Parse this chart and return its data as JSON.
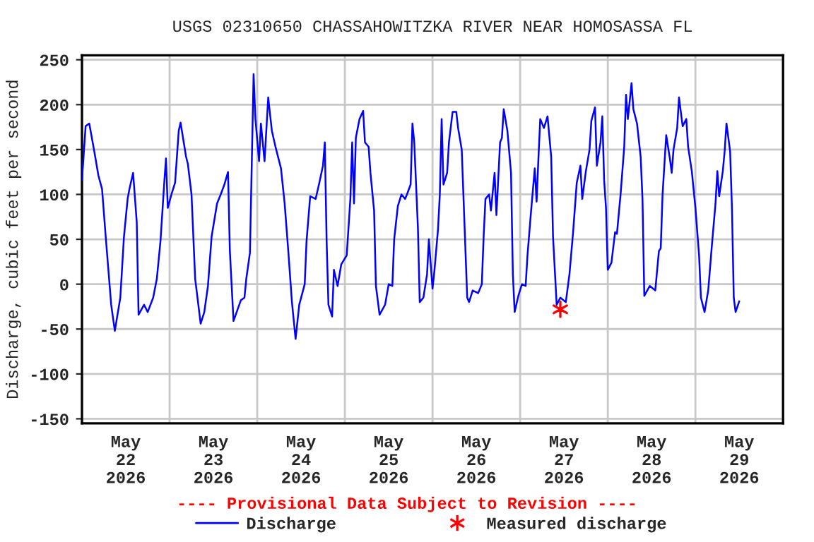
{
  "chart_data": {
    "type": "line",
    "title": "USGS 02310650 CHASSAHOWITZKA RIVER NEAR HOMOSASSA FL",
    "ylabel": "Discharge, cubic feet per second",
    "annotations": [
      "---- Provisional Data Subject to Revision ----"
    ],
    "xlim": [
      "2026-05-22",
      "2026-05-30"
    ],
    "xticks": [
      {
        "value": "2026-05-22",
        "label": null
      },
      {
        "value": "2026-05-22T12:00",
        "label": "May\n22\n2026"
      },
      {
        "value": "2026-05-23",
        "label": null
      },
      {
        "value": "2026-05-23T12:00",
        "label": "May\n23\n2026"
      },
      {
        "value": "2026-05-24",
        "label": null
      },
      {
        "value": "2026-05-24T12:00",
        "label": "May\n24\n2026"
      },
      {
        "value": "2026-05-25",
        "label": null
      },
      {
        "value": "2026-05-25T12:00",
        "label": "May\n25\n2026"
      },
      {
        "value": "2026-05-26",
        "label": null
      },
      {
        "value": "2026-05-26T12:00",
        "label": "May\n26\n2026"
      },
      {
        "value": "2026-05-27",
        "label": null
      },
      {
        "value": "2026-05-27T12:00",
        "label": "May\n27\n2026"
      },
      {
        "value": "2026-05-28",
        "label": null
      },
      {
        "value": "2026-05-28T12:00",
        "label": "May\n28\n2026"
      },
      {
        "value": "2026-05-29",
        "label": null
      },
      {
        "value": "2026-05-29T12:00",
        "label": "May\n29\n2026"
      },
      {
        "value": "2026-05-30",
        "label": null
      }
    ],
    "ylim": [
      -155,
      255
    ],
    "yticks": [
      -150,
      -100,
      -50,
      0,
      50,
      100,
      150,
      200,
      250
    ],
    "grid": true,
    "legend": "bottom",
    "series": [
      {
        "name": "Discharge",
        "color": "#0000ff",
        "marker": "none",
        "line_style": "solid",
        "x": [
          "2026-05-22T00:00",
          "2026-05-22T01:00",
          "2026-05-22T02:00",
          "2026-05-22T03:30",
          "2026-05-22T04:30",
          "2026-05-22T05:30",
          "2026-05-22T06:30",
          "2026-05-22T08:00",
          "2026-05-22T09:00",
          "2026-05-22T10:30",
          "2026-05-22T11:30",
          "2026-05-22T12:30",
          "2026-05-22T13:00",
          "2026-05-22T14:00",
          "2026-05-22T15:00",
          "2026-05-22T15:30",
          "2026-05-22T17:00",
          "2026-05-22T18:00",
          "2026-05-22T19:30",
          "2026-05-22T20:30",
          "2026-05-22T21:30",
          "2026-05-22T22:30",
          "2026-05-22T23:00",
          "2026-05-22T23:30",
          "2026-05-23T00:30",
          "2026-05-23T01:30",
          "2026-05-23T02:30",
          "2026-05-23T03:00",
          "2026-05-23T04:30",
          "2026-05-23T05:00",
          "2026-05-23T06:00",
          "2026-05-23T07:00",
          "2026-05-23T08:30",
          "2026-05-23T09:30",
          "2026-05-23T10:30",
          "2026-05-23T11:30",
          "2026-05-23T13:00",
          "2026-05-23T14:00",
          "2026-05-23T15:00",
          "2026-05-23T16:00",
          "2026-05-23T16:30",
          "2026-05-23T17:30",
          "2026-05-23T19:30",
          "2026-05-23T20:30",
          "2026-05-23T21:00",
          "2026-05-23T22:00",
          "2026-05-23T22:30",
          "2026-05-23T23:00",
          "2026-05-23T23:30",
          "2026-05-24T00:30",
          "2026-05-24T01:00",
          "2026-05-24T02:00",
          "2026-05-24T03:00",
          "2026-05-24T04:00",
          "2026-05-24T05:00",
          "2026-05-24T06:30",
          "2026-05-24T07:30",
          "2026-05-24T08:30",
          "2026-05-24T09:30",
          "2026-05-24T10:30",
          "2026-05-24T11:30",
          "2026-05-24T13:00",
          "2026-05-24T13:30",
          "2026-05-24T14:30",
          "2026-05-24T16:00",
          "2026-05-24T17:00",
          "2026-05-24T18:00",
          "2026-05-24T18:30",
          "2026-05-24T19:00",
          "2026-05-24T19:30",
          "2026-05-24T20:30",
          "2026-05-24T21:00",
          "2026-05-24T22:00",
          "2026-05-24T23:00",
          "2026-05-25T00:30",
          "2026-05-25T01:30",
          "2026-05-25T02:00",
          "2026-05-25T02:30",
          "2026-05-25T03:00",
          "2026-05-25T04:00",
          "2026-05-25T05:00",
          "2026-05-25T05:30",
          "2026-05-25T06:30",
          "2026-05-25T07:00",
          "2026-05-25T08:00",
          "2026-05-25T08:30",
          "2026-05-25T09:30",
          "2026-05-25T11:00",
          "2026-05-25T12:00",
          "2026-05-25T13:00",
          "2026-05-25T13:30",
          "2026-05-25T14:30",
          "2026-05-25T15:30",
          "2026-05-25T16:30",
          "2026-05-25T17:00",
          "2026-05-25T18:00",
          "2026-05-25T18:30",
          "2026-05-25T19:00",
          "2026-05-25T20:00",
          "2026-05-25T20:30",
          "2026-05-25T21:30",
          "2026-05-25T22:30",
          "2026-05-25T23:00",
          "2026-05-26T00:00",
          "2026-05-26T00:30",
          "2026-05-26T01:30",
          "2026-05-26T02:00",
          "2026-05-26T02:30",
          "2026-05-26T03:00",
          "2026-05-26T04:00",
          "2026-05-26T04:30",
          "2026-05-26T05:30",
          "2026-05-26T06:30",
          "2026-05-26T07:00",
          "2026-05-26T08:00",
          "2026-05-26T08:30",
          "2026-05-26T09:30",
          "2026-05-26T10:00",
          "2026-05-26T11:00",
          "2026-05-26T12:30",
          "2026-05-26T13:30",
          "2026-05-26T14:00",
          "2026-05-26T14:30",
          "2026-05-26T15:30",
          "2026-05-26T16:00",
          "2026-05-26T17:00",
          "2026-05-26T17:30",
          "2026-05-26T18:30",
          "2026-05-26T19:00",
          "2026-05-26T19:30",
          "2026-05-26T20:30",
          "2026-05-26T21:30",
          "2026-05-26T22:00",
          "2026-05-26T22:30",
          "2026-05-26T23:30",
          "2026-05-27T00:30",
          "2026-05-27T01:30",
          "2026-05-27T02:00",
          "2026-05-27T03:00",
          "2026-05-27T04:00",
          "2026-05-27T04:30",
          "2026-05-27T05:00",
          "2026-05-27T05:30",
          "2026-05-27T06:30",
          "2026-05-27T07:30",
          "2026-05-27T08:30",
          "2026-05-27T09:00",
          "2026-05-27T10:00",
          "2026-05-27T11:00",
          "2026-05-27T12:30",
          "2026-05-27T13:30",
          "2026-05-27T14:30",
          "2026-05-27T15:30",
          "2026-05-27T16:30",
          "2026-05-27T17:00",
          "2026-05-27T18:00",
          "2026-05-27T19:00",
          "2026-05-27T19:30",
          "2026-05-27T20:30",
          "2026-05-27T21:00",
          "2026-05-27T22:00",
          "2026-05-27T22:30",
          "2026-05-27T23:00",
          "2026-05-27T23:30",
          "2026-05-28T00:00",
          "2026-05-28T01:00",
          "2026-05-28T02:00",
          "2026-05-28T02:30",
          "2026-05-28T03:30",
          "2026-05-28T04:30",
          "2026-05-28T05:00",
          "2026-05-28T05:30",
          "2026-05-28T06:30",
          "2026-05-28T07:00",
          "2026-05-28T08:00",
          "2026-05-28T09:00",
          "2026-05-28T09:30",
          "2026-05-28T10:00",
          "2026-05-28T11:30",
          "2026-05-28T13:00",
          "2026-05-28T14:00",
          "2026-05-28T14:30",
          "2026-05-28T15:00",
          "2026-05-28T16:00",
          "2026-05-28T17:00",
          "2026-05-28T17:30",
          "2026-05-28T18:00",
          "2026-05-28T19:00",
          "2026-05-28T19:30",
          "2026-05-28T20:30",
          "2026-05-28T21:30",
          "2026-05-28T22:00",
          "2026-05-28T23:00",
          "2026-05-29T00:00",
          "2026-05-29T01:00",
          "2026-05-29T01:30",
          "2026-05-29T02:30",
          "2026-05-29T03:30",
          "2026-05-29T04:30",
          "2026-05-29T05:30",
          "2026-05-29T06:00",
          "2026-05-29T06:30",
          "2026-05-29T07:30",
          "2026-05-29T08:00",
          "2026-05-29T08:30",
          "2026-05-29T09:30",
          "2026-05-29T10:00",
          "2026-05-29T10:30",
          "2026-05-29T11:00",
          "2026-05-29T12:00"
        ],
        "values": [
          116,
          176,
          179,
          145,
          121,
          106,
          53,
          -23,
          -52,
          -15,
          53,
          95,
          106,
          124,
          69,
          -34,
          -23,
          -31,
          -15,
          6,
          48,
          111,
          140,
          85,
          100,
          113,
          171,
          180,
          142,
          134,
          100,
          6,
          -44,
          -31,
          -2,
          53,
          90,
          100,
          111,
          125,
          37,
          -41,
          -18,
          -15,
          6,
          35,
          134,
          234,
          184,
          137,
          179,
          137,
          208,
          171,
          153,
          129,
          90,
          37,
          -20,
          -61,
          -23,
          0,
          48,
          98,
          95,
          113,
          132,
          158,
          48,
          -23,
          -36,
          16,
          -2,
          22,
          32,
          95,
          158,
          90,
          163,
          184,
          193,
          158,
          153,
          124,
          82,
          -2,
          -34,
          -23,
          0,
          -2,
          50,
          87,
          100,
          95,
          100,
          111,
          179,
          158,
          63,
          -20,
          -15,
          11,
          50,
          -5,
          14,
          61,
          100,
          184,
          111,
          124,
          158,
          192,
          192,
          174,
          150,
          95,
          -15,
          -20,
          -7,
          -10,
          0,
          53,
          95,
          100,
          82,
          124,
          77,
          158,
          163,
          195,
          171,
          124,
          11,
          -31,
          -13,
          0,
          -2,
          32,
          82,
          129,
          92,
          140,
          184,
          174,
          187,
          142,
          53,
          -23,
          -15,
          -20,
          11,
          58,
          113,
          132,
          95,
          126,
          150,
          182,
          197,
          132,
          158,
          187,
          116,
          85,
          16,
          24,
          58,
          56,
          100,
          153,
          211,
          184,
          224,
          195,
          179,
          142,
          95,
          -13,
          -2,
          -7,
          37,
          40,
          100,
          166,
          140,
          124,
          150,
          174,
          208,
          176,
          184,
          153,
          126,
          85,
          32,
          -15,
          -31,
          -7,
          43,
          90,
          126,
          98,
          126,
          148,
          179,
          148,
          85,
          -15,
          -31,
          -19
        ]
      },
      {
        "name": "Measured discharge",
        "type": "scatter",
        "color": "#ff0000",
        "marker": "cross",
        "x": [
          "2026-05-27T11:00"
        ],
        "values": [
          -28
        ]
      }
    ]
  }
}
